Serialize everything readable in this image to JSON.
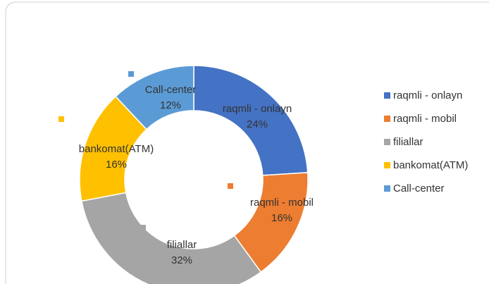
{
  "chart_data": {
    "type": "donut",
    "categories": [
      "raqmli - onlayn",
      "raqmli - mobil",
      "filiallar",
      "bankomat(ATM)",
      "Call-center"
    ],
    "values": [
      24,
      16,
      32,
      16,
      12
    ],
    "value_labels": [
      "24%",
      "16%",
      "32%",
      "16%",
      "12%"
    ],
    "colors": [
      "#4472c4",
      "#ed7d31",
      "#a5a5a5",
      "#ffc000",
      "#5b9bd5"
    ],
    "legend": "right"
  }
}
